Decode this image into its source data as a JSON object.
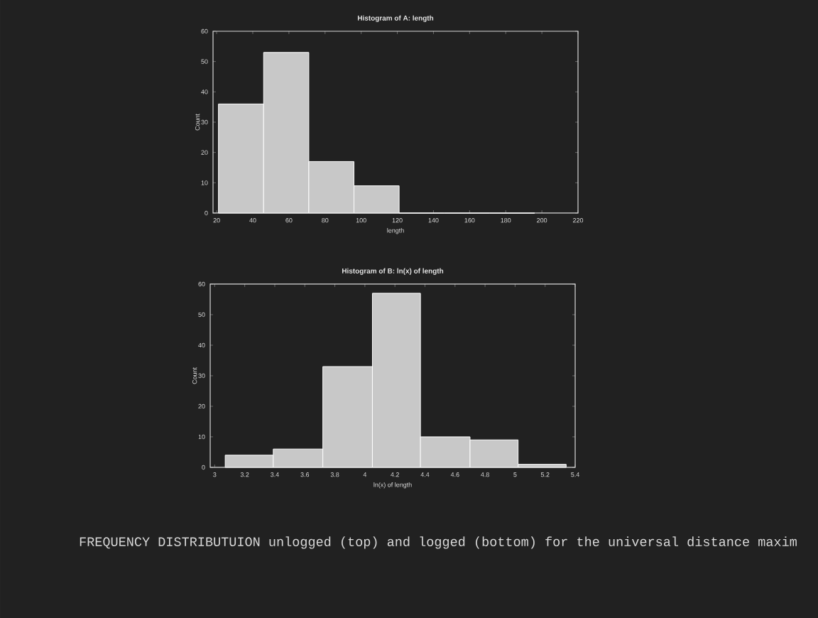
{
  "chart_data": [
    {
      "type": "histogram",
      "title": "Histogram of A: length",
      "xlabel": "length",
      "ylabel": "Count",
      "color": "#c8c8c8",
      "bins": [
        21,
        46,
        71,
        96,
        121,
        146,
        171,
        196
      ],
      "values": [
        36,
        53,
        17,
        9,
        0,
        0,
        0
      ],
      "xlim": [
        18,
        220
      ],
      "xticks": [
        20,
        40,
        60,
        80,
        100,
        120,
        140,
        160,
        180,
        200,
        220
      ],
      "ylim": [
        0,
        60
      ],
      "yticks": [
        0,
        10,
        20,
        30,
        40,
        50,
        60
      ]
    },
    {
      "type": "histogram",
      "title": "Histogram of B: ln(x) of length",
      "xlabel": "ln(x) of length",
      "ylabel": "Count",
      "color": "#c8c8c8",
      "bins": [
        3.07,
        3.39,
        3.72,
        4.05,
        4.37,
        4.7,
        5.02,
        5.34
      ],
      "values": [
        4,
        6,
        33,
        57,
        10,
        9,
        1
      ],
      "xlim": [
        2.97,
        5.4
      ],
      "xticks": [
        3,
        3.2,
        3.4,
        3.6,
        3.8,
        4,
        4.2,
        4.4,
        4.6,
        4.8,
        5,
        5.2,
        5.4
      ],
      "ylim": [
        0,
        60
      ],
      "yticks": [
        0,
        10,
        20,
        30,
        40,
        50,
        60
      ],
      "annotations": [
        "FREQUENCY DISTRIBUTUION unlogged (top) and logged (bottom) for the universal distance maxim"
      ]
    }
  ]
}
